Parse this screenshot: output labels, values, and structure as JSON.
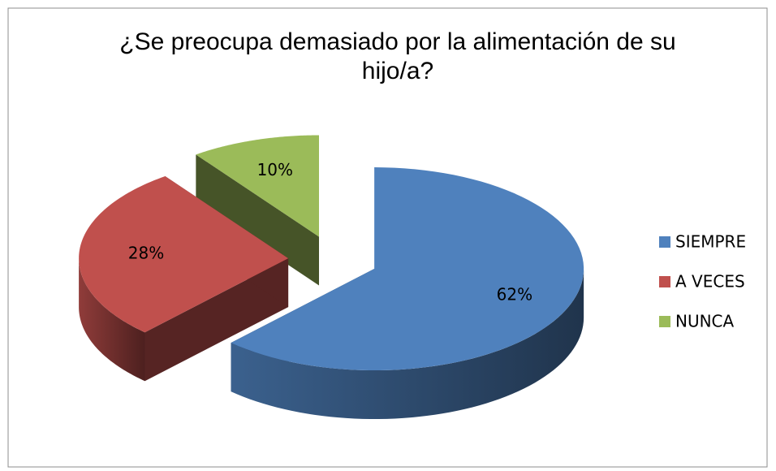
{
  "chart_data": {
    "type": "pie",
    "title": "¿Se preocupa demasiado por la alimentación de su hijo/a?",
    "categories": [
      "SIEMPRE",
      "A VECES",
      "NUNCA"
    ],
    "values": [
      62,
      28,
      10
    ],
    "value_labels": [
      "62%",
      "28%",
      "10%"
    ],
    "colors": [
      "#4f81bd",
      "#c0504d",
      "#9bbb59"
    ],
    "legend": "right"
  }
}
